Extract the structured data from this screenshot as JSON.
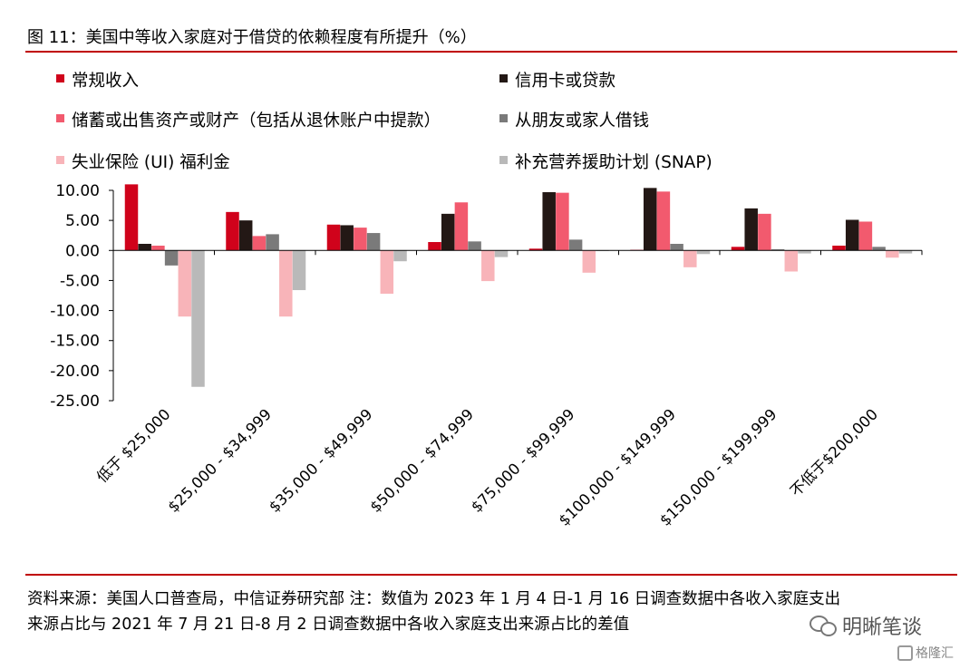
{
  "title": "图 11：美国中等收入家庭对于借贷的依赖程度有所提升（%）",
  "source_lines": [
    "资料来源：美国人口普查局，中信证券研究部  注：数值为 2023 年 1 月 4 日-1 月 16 日调查数据中各收入家庭支出",
    "来源占比与 2021 年 7 月 21 日-8 月 2 日调查数据中各收入家庭支出来源占比的差值"
  ],
  "watermark": "明晰笔谈",
  "logo_text": "格隆汇",
  "chart_data": {
    "type": "bar",
    "title": "",
    "xlabel": "",
    "ylabel": "",
    "ylim": [
      -25,
      10
    ],
    "y_ticks": [
      "10.00",
      "5.00",
      "0.00",
      "-5.00",
      "-10.00",
      "-15.00",
      "-20.00",
      "-25.00"
    ],
    "y_tick_values": [
      10,
      5,
      0,
      -5,
      -10,
      -15,
      -20,
      -25
    ],
    "grid": false,
    "legend_position": "top",
    "categories": [
      "低于 $25,000",
      "$25,000 - $34,999",
      "$35,000 - $49,999",
      "$50,000 - $74,999",
      "$75,000 - $99,999",
      "$100,000 - $149,999",
      "$150,000 - $199,999",
      "不低于$200,000"
    ],
    "series": [
      {
        "name": "常规收入",
        "color": "#d0021b",
        "values": [
          11.0,
          6.4,
          4.3,
          1.4,
          0.3,
          0.1,
          0.6,
          0.8
        ]
      },
      {
        "name": "信用卡或贷款",
        "color": "#231815",
        "values": [
          1.1,
          5.0,
          4.2,
          6.1,
          9.7,
          10.4,
          7.0,
          5.1
        ]
      },
      {
        "name": "储蓄或出售资产或财产（包括从退休账户中提款）",
        "color": "#f25a6e",
        "values": [
          0.8,
          2.4,
          3.8,
          8.0,
          9.6,
          9.8,
          6.1,
          4.8
        ]
      },
      {
        "name": "从朋友或家人借钱",
        "color": "#7a7a7a",
        "values": [
          -2.5,
          2.7,
          2.9,
          1.5,
          1.8,
          1.1,
          0.2,
          0.6
        ]
      },
      {
        "name": "失业保险 (UI) 福利金",
        "color": "#f8b4b9",
        "values": [
          -11.0,
          -11.0,
          -7.2,
          -5.1,
          -3.7,
          -2.8,
          -3.5,
          -1.2
        ]
      },
      {
        "name": "补充营养援助计划 (SNAP)",
        "color": "#b9b9b9",
        "values": [
          -22.7,
          -6.6,
          -1.8,
          -1.1,
          -0.1,
          -0.6,
          -0.5,
          -0.5
        ]
      }
    ]
  }
}
